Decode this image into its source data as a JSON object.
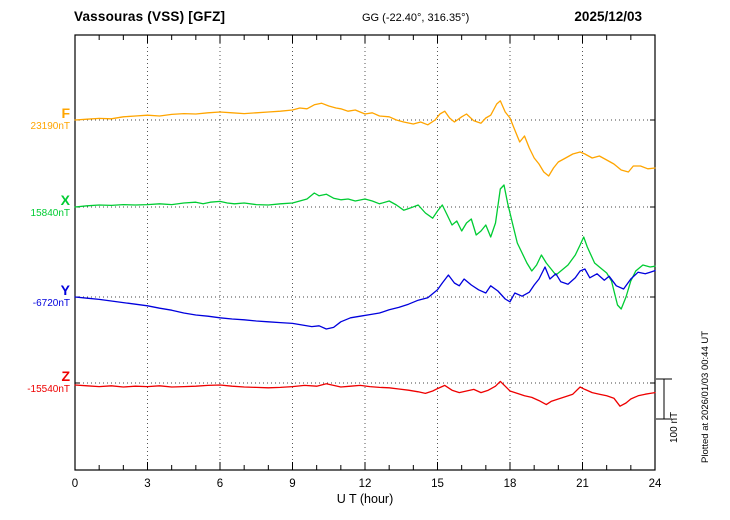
{
  "header": {
    "station_title": "Vassouras (VSS)  [GFZ]",
    "gg_coords": "GG (-22.40°, 316.35°)",
    "date": "2025/12/03"
  },
  "footer": {
    "xlabel": "U T (hour)"
  },
  "side": {
    "scale_label": "100 nT",
    "plotted_note": "Plotted at 2026/01/03 00:44 UT"
  },
  "chart_data": {
    "type": "line",
    "title": "Vassouras (VSS)  [GFZ]",
    "xlabel": "U T (hour)",
    "x_range": [
      0,
      24
    ],
    "x_ticks": [
      0,
      3,
      6,
      9,
      12,
      15,
      18,
      21,
      24
    ],
    "x_minor_tick_step": 1,
    "grid": "dotted-at-major-ticks-and-baselines",
    "legend_position": "left-margin-channel-labels",
    "scale_bar": {
      "label": "100 nT",
      "nT": 100
    },
    "unit": "nT",
    "series": [
      {
        "name": "F",
        "color": "#FFA500",
        "baseline_value": 23190,
        "baseline_label": "23190nT",
        "points_note": "hour vs offset in nT from baseline",
        "points": [
          [
            0,
            0
          ],
          [
            0.5,
            2
          ],
          [
            1,
            4
          ],
          [
            1.5,
            3
          ],
          [
            2,
            8
          ],
          [
            2.5,
            10
          ],
          [
            3,
            12
          ],
          [
            3.5,
            10
          ],
          [
            4,
            14
          ],
          [
            4.5,
            16
          ],
          [
            5,
            15
          ],
          [
            5.5,
            18
          ],
          [
            6,
            20
          ],
          [
            6.5,
            18
          ],
          [
            7,
            16
          ],
          [
            7.5,
            18
          ],
          [
            8,
            20
          ],
          [
            8.5,
            22
          ],
          [
            9,
            25
          ],
          [
            9.3,
            30
          ],
          [
            9.6,
            28
          ],
          [
            9.9,
            38
          ],
          [
            10.2,
            42
          ],
          [
            10.5,
            35
          ],
          [
            10.8,
            30
          ],
          [
            11,
            28
          ],
          [
            11.3,
            22
          ],
          [
            11.6,
            25
          ],
          [
            12,
            15
          ],
          [
            12.3,
            18
          ],
          [
            12.6,
            10
          ],
          [
            13,
            8
          ],
          [
            13.3,
            0
          ],
          [
            13.6,
            -5
          ],
          [
            14,
            -10
          ],
          [
            14.3,
            -5
          ],
          [
            14.6,
            -12
          ],
          [
            14.9,
            0
          ],
          [
            15.1,
            15
          ],
          [
            15.3,
            22
          ],
          [
            15.5,
            5
          ],
          [
            15.7,
            -5
          ],
          [
            16,
            8
          ],
          [
            16.2,
            15
          ],
          [
            16.5,
            -2
          ],
          [
            16.8,
            -8
          ],
          [
            17,
            5
          ],
          [
            17.2,
            12
          ],
          [
            17.45,
            40
          ],
          [
            17.6,
            48
          ],
          [
            17.8,
            20
          ],
          [
            18,
            5
          ],
          [
            18.2,
            -25
          ],
          [
            18.4,
            -55
          ],
          [
            18.6,
            -40
          ],
          [
            18.8,
            -70
          ],
          [
            19,
            -95
          ],
          [
            19.2,
            -110
          ],
          [
            19.4,
            -130
          ],
          [
            19.6,
            -140
          ],
          [
            19.8,
            -120
          ],
          [
            20,
            -105
          ],
          [
            20.3,
            -95
          ],
          [
            20.6,
            -85
          ],
          [
            20.9,
            -80
          ],
          [
            21.1,
            -85
          ],
          [
            21.4,
            -95
          ],
          [
            21.7,
            -90
          ],
          [
            22,
            -100
          ],
          [
            22.3,
            -110
          ],
          [
            22.6,
            -125
          ],
          [
            22.9,
            -130
          ],
          [
            23.1,
            -115
          ],
          [
            23.4,
            -115
          ],
          [
            23.7,
            -122
          ],
          [
            24,
            -120
          ]
        ]
      },
      {
        "name": "X",
        "color": "#00CC33",
        "baseline_value": 15840,
        "baseline_label": "15840nT",
        "points": [
          [
            0,
            0
          ],
          [
            0.5,
            3
          ],
          [
            1,
            5
          ],
          [
            1.5,
            4
          ],
          [
            2,
            6
          ],
          [
            2.5,
            5
          ],
          [
            3,
            6
          ],
          [
            3.5,
            8
          ],
          [
            4,
            6
          ],
          [
            4.5,
            10
          ],
          [
            5,
            12
          ],
          [
            5.3,
            8
          ],
          [
            5.6,
            12
          ],
          [
            6,
            14
          ],
          [
            6.3,
            10
          ],
          [
            6.6,
            8
          ],
          [
            7,
            10
          ],
          [
            7.5,
            6
          ],
          [
            8,
            5
          ],
          [
            8.5,
            8
          ],
          [
            9,
            10
          ],
          [
            9.3,
            15
          ],
          [
            9.6,
            20
          ],
          [
            9.9,
            35
          ],
          [
            10.1,
            28
          ],
          [
            10.4,
            32
          ],
          [
            10.7,
            22
          ],
          [
            11,
            18
          ],
          [
            11.3,
            20
          ],
          [
            11.6,
            15
          ],
          [
            12,
            20
          ],
          [
            12.3,
            15
          ],
          [
            12.6,
            8
          ],
          [
            13,
            15
          ],
          [
            13.3,
            5
          ],
          [
            13.6,
            -8
          ],
          [
            13.9,
            -2
          ],
          [
            14.2,
            5
          ],
          [
            14.5,
            -15
          ],
          [
            14.8,
            -28
          ],
          [
            15,
            -10
          ],
          [
            15.2,
            5
          ],
          [
            15.4,
            -20
          ],
          [
            15.6,
            -45
          ],
          [
            15.8,
            -35
          ],
          [
            16,
            -60
          ],
          [
            16.2,
            -40
          ],
          [
            16.4,
            -30
          ],
          [
            16.6,
            -70
          ],
          [
            16.8,
            -60
          ],
          [
            17,
            -45
          ],
          [
            17.2,
            -75
          ],
          [
            17.4,
            -40
          ],
          [
            17.6,
            45
          ],
          [
            17.75,
            55
          ],
          [
            17.9,
            10
          ],
          [
            18.1,
            -40
          ],
          [
            18.3,
            -90
          ],
          [
            18.5,
            -115
          ],
          [
            18.7,
            -140
          ],
          [
            18.9,
            -160
          ],
          [
            19.1,
            -145
          ],
          [
            19.3,
            -120
          ],
          [
            19.5,
            -140
          ],
          [
            19.7,
            -155
          ],
          [
            19.9,
            -170
          ],
          [
            20.1,
            -160
          ],
          [
            20.4,
            -145
          ],
          [
            20.7,
            -120
          ],
          [
            20.9,
            -95
          ],
          [
            21.05,
            -75
          ],
          [
            21.2,
            -100
          ],
          [
            21.5,
            -140
          ],
          [
            21.8,
            -155
          ],
          [
            22,
            -165
          ],
          [
            22.2,
            -185
          ],
          [
            22.45,
            -245
          ],
          [
            22.6,
            -255
          ],
          [
            22.8,
            -225
          ],
          [
            23,
            -185
          ],
          [
            23.2,
            -160
          ],
          [
            23.5,
            -145
          ],
          [
            23.8,
            -150
          ],
          [
            24,
            -148
          ]
        ]
      },
      {
        "name": "Y",
        "color": "#0000DD",
        "baseline_value": -6720,
        "baseline_label": "-6720nT",
        "points": [
          [
            0,
            0
          ],
          [
            0.5,
            -3
          ],
          [
            1,
            -6
          ],
          [
            1.5,
            -10
          ],
          [
            2,
            -14
          ],
          [
            2.5,
            -18
          ],
          [
            3,
            -22
          ],
          [
            3.5,
            -28
          ],
          [
            4,
            -33
          ],
          [
            4.5,
            -40
          ],
          [
            5,
            -45
          ],
          [
            5.5,
            -48
          ],
          [
            6,
            -52
          ],
          [
            6.5,
            -55
          ],
          [
            7,
            -57
          ],
          [
            7.5,
            -60
          ],
          [
            8,
            -62
          ],
          [
            8.5,
            -64
          ],
          [
            9,
            -66
          ],
          [
            9.4,
            -70
          ],
          [
            9.8,
            -74
          ],
          [
            10.1,
            -72
          ],
          [
            10.4,
            -80
          ],
          [
            10.7,
            -76
          ],
          [
            11,
            -62
          ],
          [
            11.4,
            -52
          ],
          [
            11.8,
            -48
          ],
          [
            12.2,
            -44
          ],
          [
            12.6,
            -40
          ],
          [
            13,
            -32
          ],
          [
            13.4,
            -26
          ],
          [
            13.8,
            -18
          ],
          [
            14.2,
            -8
          ],
          [
            14.6,
            -2
          ],
          [
            15,
            18
          ],
          [
            15.2,
            35
          ],
          [
            15.45,
            55
          ],
          [
            15.7,
            35
          ],
          [
            15.9,
            28
          ],
          [
            16.1,
            45
          ],
          [
            16.4,
            30
          ],
          [
            16.7,
            18
          ],
          [
            17,
            10
          ],
          [
            17.2,
            28
          ],
          [
            17.5,
            15
          ],
          [
            17.8,
            -5
          ],
          [
            18,
            -12
          ],
          [
            18.2,
            10
          ],
          [
            18.5,
            2
          ],
          [
            18.8,
            12
          ],
          [
            19,
            30
          ],
          [
            19.2,
            45
          ],
          [
            19.45,
            75
          ],
          [
            19.65,
            45
          ],
          [
            19.9,
            58
          ],
          [
            20.1,
            38
          ],
          [
            20.4,
            32
          ],
          [
            20.7,
            48
          ],
          [
            20.9,
            65
          ],
          [
            21.1,
            70
          ],
          [
            21.3,
            48
          ],
          [
            21.6,
            58
          ],
          [
            21.9,
            42
          ],
          [
            22.1,
            52
          ],
          [
            22.4,
            28
          ],
          [
            22.7,
            20
          ],
          [
            23,
            45
          ],
          [
            23.3,
            62
          ],
          [
            23.6,
            58
          ],
          [
            23.8,
            62
          ],
          [
            24,
            66
          ]
        ]
      },
      {
        "name": "Z",
        "color": "#EE0000",
        "baseline_value": -15540,
        "baseline_label": "-15540nT",
        "points": [
          [
            0,
            -5
          ],
          [
            0.5,
            -7
          ],
          [
            1,
            -9
          ],
          [
            1.5,
            -7
          ],
          [
            2,
            -10
          ],
          [
            2.5,
            -8
          ],
          [
            3,
            -9
          ],
          [
            3.5,
            -7
          ],
          [
            4,
            -10
          ],
          [
            4.5,
            -9
          ],
          [
            5,
            -8
          ],
          [
            5.5,
            -6
          ],
          [
            6,
            -5
          ],
          [
            6.5,
            -8
          ],
          [
            7,
            -10
          ],
          [
            7.5,
            -11
          ],
          [
            8,
            -12
          ],
          [
            8.5,
            -11
          ],
          [
            9,
            -9
          ],
          [
            9.5,
            -6
          ],
          [
            10,
            -8
          ],
          [
            10.4,
            -2
          ],
          [
            10.7,
            -6
          ],
          [
            11,
            -10
          ],
          [
            11.4,
            -8
          ],
          [
            11.8,
            -6
          ],
          [
            12.2,
            -9
          ],
          [
            12.6,
            -11
          ],
          [
            13,
            -12
          ],
          [
            13.4,
            -15
          ],
          [
            13.8,
            -18
          ],
          [
            14.2,
            -22
          ],
          [
            14.5,
            -26
          ],
          [
            14.8,
            -20
          ],
          [
            15,
            -14
          ],
          [
            15.3,
            -6
          ],
          [
            15.6,
            -18
          ],
          [
            15.9,
            -24
          ],
          [
            16.2,
            -20
          ],
          [
            16.5,
            -16
          ],
          [
            16.8,
            -24
          ],
          [
            17.1,
            -18
          ],
          [
            17.4,
            -8
          ],
          [
            17.6,
            4
          ],
          [
            17.8,
            -8
          ],
          [
            18,
            -20
          ],
          [
            18.3,
            -26
          ],
          [
            18.6,
            -32
          ],
          [
            18.9,
            -36
          ],
          [
            19.2,
            -44
          ],
          [
            19.5,
            -54
          ],
          [
            19.7,
            -46
          ],
          [
            20,
            -40
          ],
          [
            20.3,
            -34
          ],
          [
            20.6,
            -28
          ],
          [
            20.9,
            -10
          ],
          [
            21.1,
            -16
          ],
          [
            21.4,
            -24
          ],
          [
            21.7,
            -28
          ],
          [
            22,
            -32
          ],
          [
            22.3,
            -38
          ],
          [
            22.55,
            -58
          ],
          [
            22.8,
            -50
          ],
          [
            23,
            -40
          ],
          [
            23.3,
            -32
          ],
          [
            23.6,
            -28
          ],
          [
            23.8,
            -26
          ],
          [
            24,
            -24
          ]
        ]
      }
    ]
  }
}
